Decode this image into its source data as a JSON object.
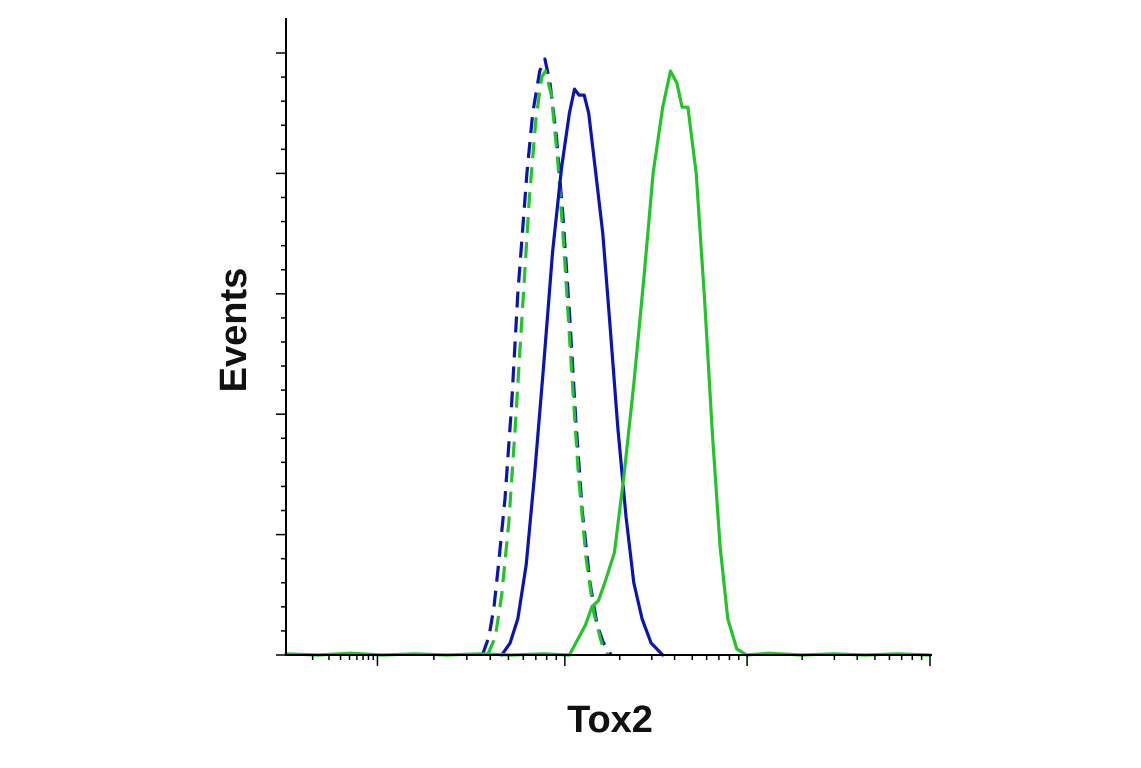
{
  "chart_data": {
    "type": "line",
    "title": "",
    "xlabel": "Tox2",
    "ylabel": "Events",
    "x_scale": "log",
    "xlim": [
      0,
      100
    ],
    "ylim": [
      0,
      100
    ],
    "grid": false,
    "legend": "none",
    "series": [
      {
        "color": "#0a14b4",
        "style": "dashed",
        "points": [
          [
            30.5,
            0
          ],
          [
            31.5,
            3
          ],
          [
            32.3,
            8
          ],
          [
            33,
            15
          ],
          [
            34,
            26
          ],
          [
            35,
            41
          ],
          [
            36,
            60
          ],
          [
            37.4,
            80
          ],
          [
            38.3,
            90
          ],
          [
            39.4,
            97
          ],
          [
            40.2,
            99
          ],
          [
            41,
            95
          ],
          [
            42,
            86
          ],
          [
            43,
            73
          ],
          [
            44,
            57
          ],
          [
            45,
            39
          ],
          [
            46,
            24
          ],
          [
            47.2,
            12
          ],
          [
            48.3,
            5
          ],
          [
            49.3,
            2
          ],
          [
            50.5,
            0
          ]
        ]
      },
      {
        "color": "#22c42a",
        "style": "dashed",
        "points": [
          [
            31.3,
            0
          ],
          [
            32.5,
            3
          ],
          [
            33.5,
            10
          ],
          [
            34.6,
            22
          ],
          [
            35.6,
            38
          ],
          [
            36.7,
            57
          ],
          [
            37.8,
            76
          ],
          [
            38.8,
            89
          ],
          [
            39.7,
            96
          ],
          [
            40.3,
            97
          ],
          [
            41.2,
            93
          ],
          [
            42.2,
            82
          ],
          [
            43.2,
            67
          ],
          [
            44.3,
            48
          ],
          [
            45.4,
            30
          ],
          [
            46.6,
            16
          ],
          [
            47.8,
            7
          ],
          [
            49,
            2
          ],
          [
            50,
            0
          ]
        ]
      },
      {
        "color": "#0a14b4",
        "style": "solid",
        "points": [
          [
            33.5,
            0
          ],
          [
            34.8,
            2
          ],
          [
            36,
            6
          ],
          [
            37.3,
            15
          ],
          [
            38.6,
            30
          ],
          [
            40,
            48
          ],
          [
            41.4,
            67
          ],
          [
            42.8,
            81
          ],
          [
            44,
            90
          ],
          [
            44.8,
            94
          ],
          [
            45.5,
            93
          ],
          [
            46.3,
            93
          ],
          [
            47,
            90
          ],
          [
            48,
            81
          ],
          [
            49.2,
            70
          ],
          [
            50.3,
            55
          ],
          [
            51.5,
            38
          ],
          [
            52.8,
            23
          ],
          [
            54,
            12
          ],
          [
            55.3,
            6
          ],
          [
            56.7,
            2
          ],
          [
            58.5,
            0
          ]
        ]
      },
      {
        "color": "#22c42a",
        "style": "solid",
        "points": [
          [
            0,
            0.2
          ],
          [
            5,
            0
          ],
          [
            10,
            0.3
          ],
          [
            15,
            0
          ],
          [
            20,
            0.2
          ],
          [
            25,
            0
          ],
          [
            30,
            0.2
          ],
          [
            35,
            0
          ],
          [
            40,
            0.2
          ],
          [
            44,
            0
          ],
          [
            45,
            2
          ],
          [
            46.5,
            5
          ],
          [
            47.5,
            8
          ],
          [
            48.5,
            9
          ],
          [
            49.5,
            12
          ],
          [
            51,
            17
          ],
          [
            52.5,
            30
          ],
          [
            54,
            45
          ],
          [
            55.6,
            63
          ],
          [
            57,
            80
          ],
          [
            58.5,
            91
          ],
          [
            59.7,
            97
          ],
          [
            60.7,
            95
          ],
          [
            61.5,
            91
          ],
          [
            62.4,
            91
          ],
          [
            63.7,
            80
          ],
          [
            65,
            59
          ],
          [
            66.2,
            37
          ],
          [
            67.4,
            18
          ],
          [
            68.6,
            6
          ],
          [
            70,
            1
          ],
          [
            71.5,
            0
          ],
          [
            75,
            0.3
          ],
          [
            80,
            0
          ],
          [
            85,
            0.2
          ],
          [
            90,
            0
          ],
          [
            95,
            0.2
          ],
          [
            100,
            0
          ]
        ]
      }
    ]
  }
}
